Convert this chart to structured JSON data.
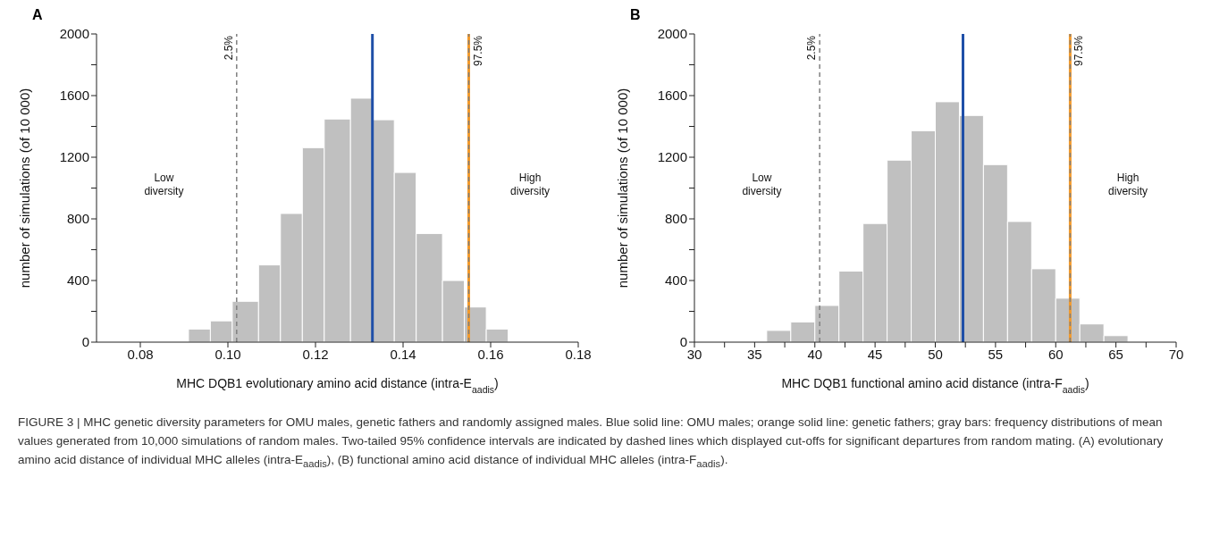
{
  "chart_data": [
    {
      "type": "histogram",
      "title": "A",
      "xlabel": "MHC DQB1 evolutionary amino acid distance (intra-E$_{aadis}$)",
      "ylabel": "number of simulations (of 10 000)",
      "color": "#c0c0c0",
      "bins": [
        0.091,
        0.096,
        0.101,
        0.107,
        0.112,
        0.117,
        0.122,
        0.128,
        0.133,
        0.138,
        0.143,
        0.149,
        0.154,
        0.159,
        0.164
      ],
      "values": [
        85,
        138,
        265,
        501,
        835,
        1262,
        1448,
        1583,
        1443,
        1101,
        705,
        400,
        228,
        85
      ],
      "xlim": [
        0.07,
        0.18
      ],
      "xticks": [
        {
          "value": 0.08,
          "label": "0.08"
        },
        {
          "value": 0.1,
          "label": "0.10"
        },
        {
          "value": 0.12,
          "label": "0.12"
        },
        {
          "value": 0.14,
          "label": "0.14"
        },
        {
          "value": 0.16,
          "label": "0.16"
        },
        {
          "value": 0.18,
          "label": "0.18"
        }
      ],
      "ylim": [
        0,
        2000
      ],
      "yticks": [
        0,
        {
          "value": 200,
          "label": null
        },
        400,
        {
          "value": 600,
          "label": null
        },
        800,
        {
          "value": 1000,
          "label": null
        },
        1200,
        {
          "value": 1400,
          "label": null
        },
        1600,
        {
          "value": 1800,
          "label": null
        },
        2000
      ],
      "grid": false,
      "ref_lines": [
        {
          "axis": "x",
          "value": 0.102,
          "label": null,
          "color": "#808080",
          "line_style": "dashed"
        },
        {
          "axis": "x",
          "value": 0.133,
          "label": null,
          "color": "#1f4fa8",
          "line_style": "solid"
        },
        {
          "axis": "x",
          "value": 0.155,
          "label": null,
          "color": "#f39a2b",
          "line_style": "solid"
        },
        {
          "axis": "x",
          "value": 0.155,
          "label": null,
          "color": "#808080",
          "line_style": "dashed"
        }
      ],
      "annotations": [
        "Low diversity",
        "High diversity",
        {
          "text": "2.5%",
          "x": 0.102,
          "y": 2000
        },
        {
          "text": "97.5%",
          "x": 0.155,
          "y": 2000
        },
        "FIGURE 3 | MHC genetic diversity parameters for OMU males, genetic fathers and randomly assigned males. Blue solid line: OMU males; orange solid line: genetic fathers; gray bars: frequency distributions of mean values generated from 10,000 simulations of random males. Two-tailed 95% confidence intervals are indicated by dashed lines which displayed cut-offs for significant departures from random mating. (A) evolutionary amino acid distance of individual MHC alleles (intra-E$_{aadis}$), (B) functional amino acid distance of individual MHC alleles (intra-F$_{aadis}$)."
      ]
    },
    {
      "type": "histogram",
      "title": "B",
      "xlabel": "MHC DQB1 functional amino acid distance (intra-F$_{aadis}$)",
      "ylabel": "number of simulations (of 10 000)",
      "color": "#c0c0c0",
      "bins": [
        36,
        38,
        40,
        42,
        44,
        46,
        48,
        50,
        52,
        54,
        56,
        58,
        60,
        62,
        64,
        66
      ],
      "values": [
        76,
        131,
        238,
        461,
        770,
        1181,
        1372,
        1560,
        1471,
        1152,
        783,
        476,
        285,
        118,
        42
      ],
      "xlim": [
        30,
        70
      ],
      "xticks": [
        30,
        {
          "value": 32.5,
          "label": null
        },
        35,
        {
          "value": 37.5,
          "label": null
        },
        40,
        {
          "value": 42.5,
          "label": null
        },
        45,
        {
          "value": 47.5,
          "label": null
        },
        50,
        {
          "value": 52.5,
          "label": null
        },
        55,
        {
          "value": 57.5,
          "label": null
        },
        60,
        {
          "value": 62.5,
          "label": null
        },
        65,
        {
          "value": 67.5,
          "label": null
        },
        70
      ],
      "ylim": [
        0,
        2000
      ],
      "yticks": [
        0,
        {
          "value": 200,
          "label": null
        },
        400,
        {
          "value": 600,
          "label": null
        },
        800,
        {
          "value": 1000,
          "label": null
        },
        1200,
        {
          "value": 1400,
          "label": null
        },
        1600,
        {
          "value": 1800,
          "label": null
        },
        2000
      ],
      "grid": false,
      "ref_lines": [
        {
          "axis": "x",
          "value": 40.4,
          "label": null,
          "color": "#808080",
          "line_style": "dashed"
        },
        {
          "axis": "x",
          "value": 52.3,
          "label": null,
          "color": "#1f4fa8",
          "line_style": "solid"
        },
        {
          "axis": "x",
          "value": 61.2,
          "label": null,
          "color": "#f39a2b",
          "line_style": "solid"
        },
        {
          "axis": "x",
          "value": 61.2,
          "label": null,
          "color": "#808080",
          "line_style": "dashed"
        }
      ],
      "annotations": [
        "Low diversity",
        "High diversity",
        {
          "text": "2.5%",
          "x": 40.4,
          "y": 2000
        },
        {
          "text": "97.5%",
          "x": 61.2,
          "y": 2000
        }
      ]
    }
  ]
}
